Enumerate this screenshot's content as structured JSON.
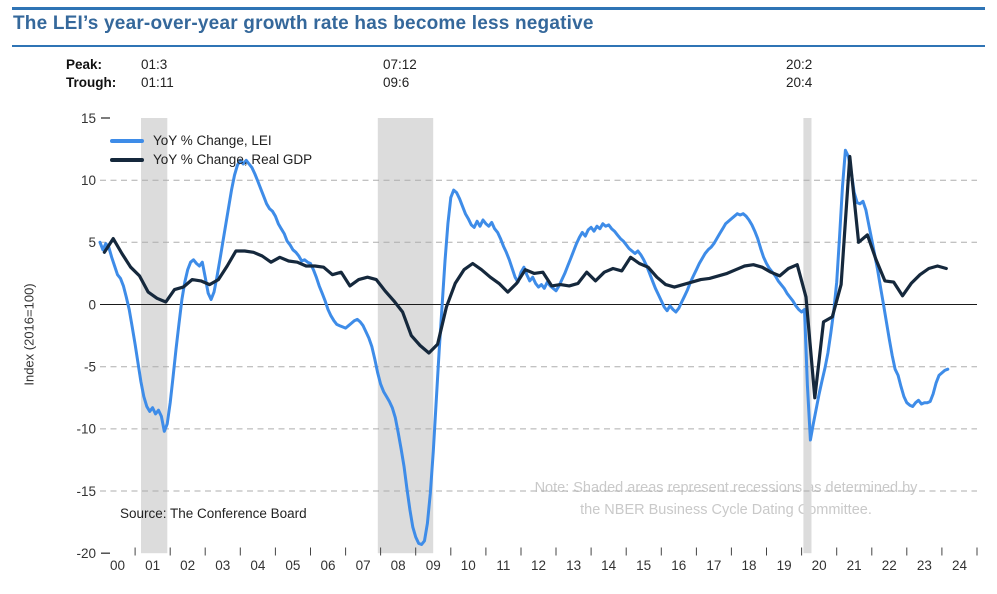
{
  "header": {
    "title": "The LEI’s year-over-year growth rate has become less negative"
  },
  "annotations": {
    "peak_label": "Peak:",
    "trough_label": "Trough:",
    "recessions": [
      {
        "peak": "01:3",
        "trough": "01:11"
      },
      {
        "peak": "07:12",
        "trough": "09:6"
      },
      {
        "peak": "20:2",
        "trough": "20:4"
      }
    ],
    "source": "Source: The Conference Board",
    "note_line1": "Note: Shaded areas represent recessions as determined by",
    "note_line2": "the NBER Business Cycle Dating Committee."
  },
  "chart_data": {
    "type": "line",
    "title": "The LEI’s year-over-year growth rate has become less negative",
    "xlabel": "",
    "ylabel": "Index (2016=100)",
    "xlim": [
      2000,
      2025
    ],
    "ylim": [
      -20,
      15
    ],
    "grid": "dashed horizontal at 10, 5, -5, -10, -15; solid line at 0",
    "grid_dashed_at": [
      10,
      5,
      -5,
      -10,
      -15
    ],
    "y_edge_ticks": [
      15,
      -20
    ],
    "y_tick_values": [
      15,
      10,
      5,
      0,
      -5,
      -10,
      -15,
      -20
    ],
    "y_tick_labels": [
      "15",
      "10",
      "5",
      "0",
      "-5",
      "-10",
      "-15",
      "-20"
    ],
    "x_tick_labels": [
      "00",
      "01",
      "02",
      "03",
      "04",
      "05",
      "06",
      "07",
      "08",
      "09",
      "10",
      "11",
      "12",
      "13",
      "14",
      "15",
      "16",
      "17",
      "18",
      "19",
      "20",
      "21",
      "22",
      "23",
      "24"
    ],
    "legend_position": "top-left inside plot",
    "legend": [
      {
        "label": "YoY % Change, LEI",
        "color": "#3E8CE8"
      },
      {
        "label": "YoY % Change, Real GDP",
        "color": "#15283C"
      }
    ],
    "recession_shading": [
      [
        2001.17,
        2001.92
      ],
      [
        2007.92,
        2009.5
      ],
      [
        2020.05,
        2020.28
      ]
    ],
    "colors": {
      "band": "#DCDCDC",
      "grid": "#ADADAD",
      "zero_line": "#1a1a1a",
      "tick": "#444444",
      "axis_text": "#333333"
    },
    "series": [
      {
        "name": "YoY % Change, LEI",
        "color": "#3E8CE8",
        "width": 3,
        "x_start": 2000.0,
        "x_step": 0.0833333,
        "values": [
          5.0,
          4.4,
          4.9,
          4.6,
          3.8,
          3.1,
          2.4,
          2.1,
          1.5,
          0.6,
          -0.4,
          -1.8,
          -3.2,
          -4.7,
          -6.2,
          -7.4,
          -8.2,
          -8.6,
          -8.3,
          -8.8,
          -8.5,
          -9.0,
          -10.2,
          -9.6,
          -7.9,
          -5.8,
          -3.6,
          -1.6,
          0.4,
          1.8,
          2.8,
          3.4,
          3.6,
          3.3,
          3.1,
          3.4,
          2.2,
          0.9,
          0.4,
          1.0,
          2.2,
          3.6,
          5.0,
          6.4,
          7.8,
          9.2,
          10.4,
          11.2,
          11.6,
          11.3,
          11.6,
          11.3,
          11.0,
          10.5,
          9.9,
          9.3,
          8.7,
          8.1,
          7.7,
          7.5,
          7.1,
          6.5,
          6.1,
          5.7,
          5.1,
          4.8,
          4.4,
          4.2,
          3.9,
          3.5,
          3.6,
          3.4,
          3.3,
          2.8,
          2.2,
          1.5,
          0.9,
          0.3,
          -0.4,
          -0.9,
          -1.3,
          -1.6,
          -1.7,
          -1.8,
          -1.9,
          -1.7,
          -1.5,
          -1.3,
          -1.2,
          -1.4,
          -1.7,
          -2.2,
          -2.7,
          -3.4,
          -4.4,
          -5.5,
          -6.4,
          -7.0,
          -7.4,
          -7.8,
          -8.3,
          -9.1,
          -10.3,
          -11.6,
          -13.0,
          -14.8,
          -16.5,
          -17.9,
          -18.7,
          -19.2,
          -19.3,
          -19.0,
          -17.6,
          -15.2,
          -11.8,
          -7.8,
          -3.8,
          -0.2,
          3.5,
          6.5,
          8.6,
          9.2,
          9.0,
          8.5,
          7.9,
          7.3,
          6.9,
          6.4,
          6.2,
          6.7,
          6.3,
          6.8,
          6.5,
          6.3,
          6.6,
          6.1,
          5.8,
          5.3,
          4.7,
          4.2,
          3.6,
          2.9,
          2.2,
          1.8,
          2.6,
          3.0,
          2.4,
          1.9,
          2.2,
          1.7,
          1.4,
          1.6,
          1.3,
          1.8,
          1.5,
          1.3,
          1.1,
          1.5,
          2.0,
          2.5,
          3.1,
          3.7,
          4.3,
          4.9,
          5.4,
          5.8,
          5.5,
          6.0,
          6.2,
          5.9,
          6.3,
          6.1,
          6.5,
          6.3,
          6.4,
          6.1,
          5.9,
          5.6,
          5.3,
          5.1,
          4.8,
          4.5,
          4.3,
          4.1,
          4.3,
          4.0,
          3.6,
          3.1,
          2.5,
          1.9,
          1.3,
          0.8,
          0.3,
          -0.2,
          -0.5,
          -0.1,
          -0.4,
          -0.6,
          -0.3,
          0.2,
          0.7,
          1.2,
          1.8,
          2.3,
          2.8,
          3.3,
          3.7,
          4.1,
          4.4,
          4.6,
          4.9,
          5.3,
          5.7,
          6.1,
          6.5,
          6.7,
          6.9,
          7.1,
          7.3,
          7.2,
          7.3,
          7.1,
          6.8,
          6.4,
          5.9,
          5.3,
          4.5,
          3.8,
          3.3,
          2.9,
          2.6,
          2.3,
          1.9,
          1.6,
          1.3,
          0.9,
          0.6,
          0.3,
          -0.1,
          -0.4,
          -0.6,
          -0.4,
          -6.5,
          -10.9,
          -9.6,
          -8.4,
          -7.2,
          -6.1,
          -5.1,
          -3.9,
          -2.3,
          -0.5,
          1.8,
          5.5,
          9.5,
          12.4,
          11.9,
          10.6,
          9.0,
          8.2,
          8.1,
          8.3,
          7.6,
          6.4,
          5.2,
          4.0,
          2.8,
          1.4,
          0.0,
          -1.4,
          -2.8,
          -4.1,
          -5.2,
          -5.7,
          -6.6,
          -7.4,
          -7.9,
          -8.1,
          -8.2,
          -7.9,
          -7.7,
          -8.0,
          -7.9,
          -7.9,
          -7.8,
          -7.2,
          -6.3,
          -5.7,
          -5.5,
          -5.3,
          -5.2
        ]
      },
      {
        "name": "YoY % Change, Real GDP",
        "color": "#15283C",
        "width": 3.2,
        "x_start": 2000.125,
        "x_step": 0.25,
        "values": [
          4.2,
          5.3,
          4.1,
          3.0,
          2.3,
          1.0,
          0.5,
          0.2,
          1.2,
          1.4,
          2.0,
          1.9,
          1.6,
          2.0,
          3.1,
          4.3,
          4.3,
          4.2,
          3.9,
          3.4,
          3.8,
          3.5,
          3.4,
          3.1,
          3.1,
          3.0,
          2.4,
          2.6,
          1.5,
          2.0,
          2.2,
          2.0,
          1.1,
          0.3,
          -0.6,
          -2.5,
          -3.3,
          -3.9,
          -3.2,
          -0.2,
          1.7,
          2.8,
          3.3,
          2.8,
          2.2,
          1.7,
          1.0,
          1.7,
          2.8,
          2.5,
          2.6,
          1.5,
          1.6,
          1.5,
          1.7,
          2.6,
          1.9,
          2.6,
          2.9,
          2.7,
          3.8,
          3.3,
          3.0,
          2.2,
          1.6,
          1.4,
          1.6,
          1.8,
          2.0,
          2.1,
          2.3,
          2.5,
          2.8,
          3.1,
          3.2,
          3.0,
          2.6,
          2.3,
          2.9,
          3.2,
          0.6,
          -7.5,
          -1.4,
          -1.0,
          1.6,
          11.9,
          5.0,
          5.6,
          3.6,
          1.9,
          1.8,
          0.7,
          1.7,
          2.4,
          2.9,
          3.1,
          2.9
        ]
      }
    ]
  }
}
